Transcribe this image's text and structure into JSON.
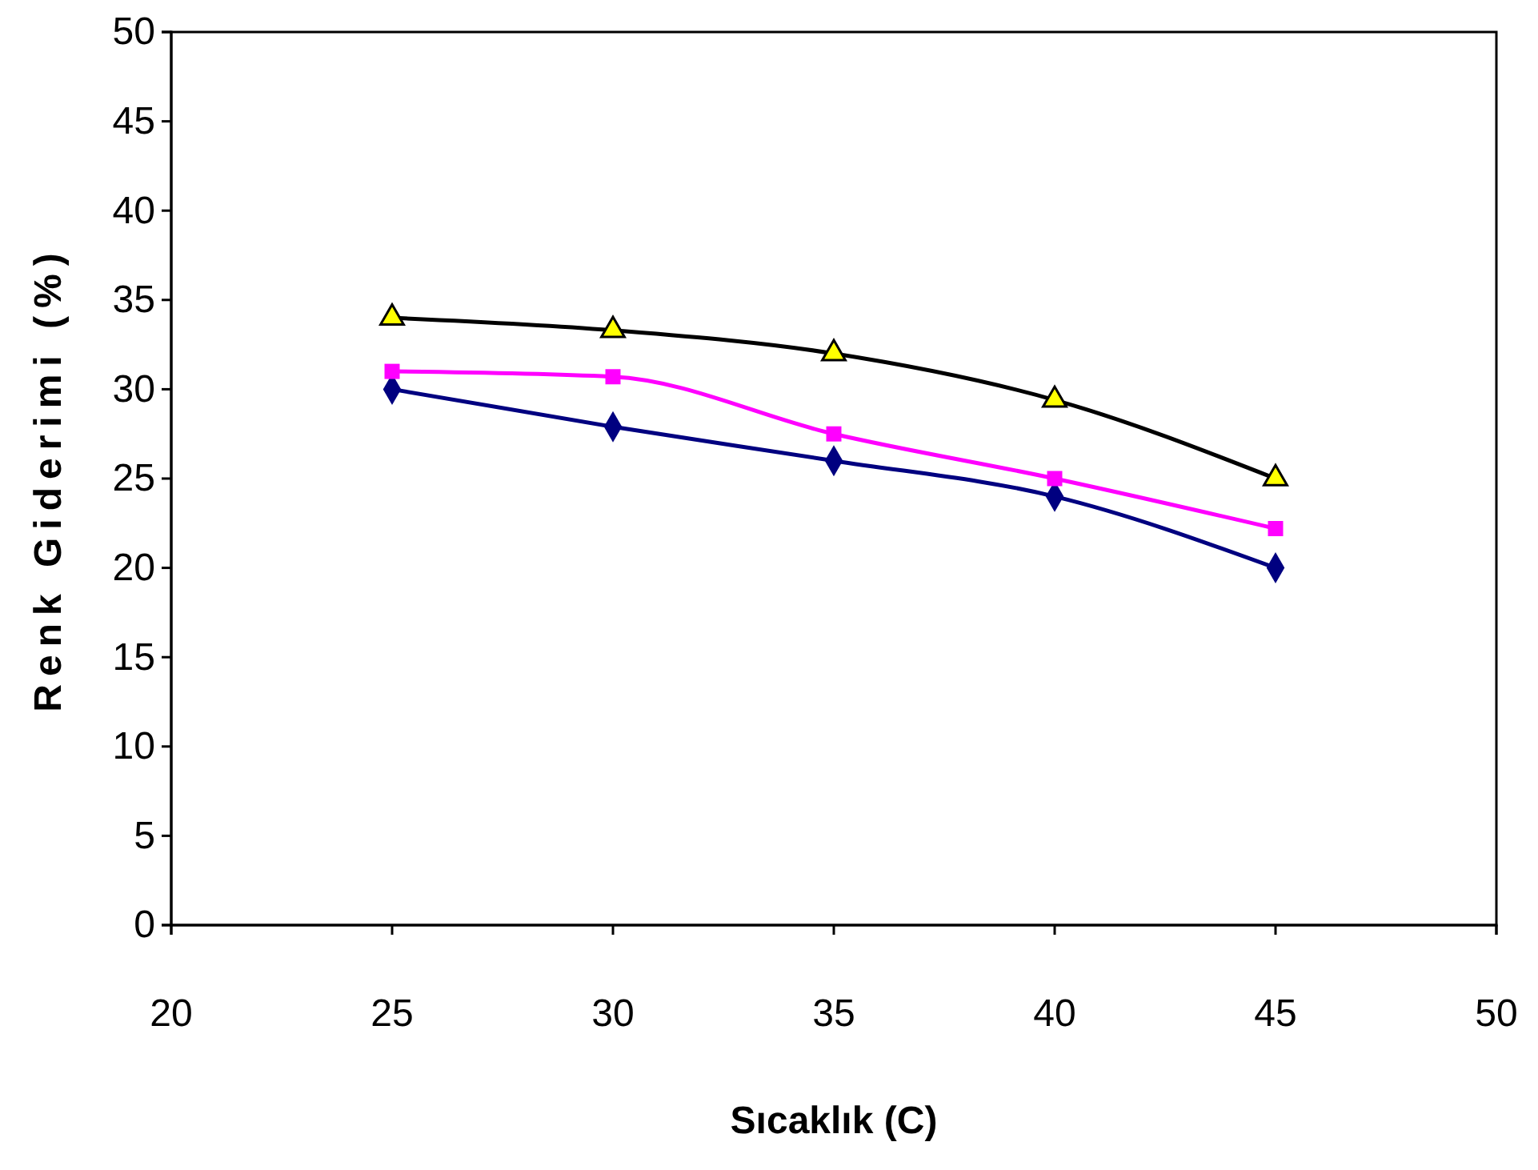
{
  "chart_data": {
    "type": "line",
    "xlabel": "Sıcaklık (C)",
    "ylabel": "Renk Giderimi (%)",
    "x": [
      25,
      30,
      35,
      40,
      45
    ],
    "series": [
      {
        "color": "#000080",
        "marker": "diamond",
        "values": [
          30,
          27.9,
          26,
          24,
          20
        ]
      },
      {
        "color": "#ff00ff",
        "marker": "square",
        "values": [
          31,
          30.7,
          27.5,
          25,
          22.2
        ]
      },
      {
        "color": "#000000",
        "marker": "triangle",
        "values": [
          34,
          33.3,
          32,
          29.4,
          25
        ]
      }
    ],
    "xlim": [
      20,
      50
    ],
    "xticks": [
      20,
      25,
      30,
      35,
      40,
      45,
      50
    ],
    "ylim": [
      0,
      50
    ],
    "yticks": [
      0,
      5,
      10,
      15,
      20,
      25,
      30,
      35,
      40,
      45,
      50
    ],
    "grid": false,
    "line_style": "solid"
  }
}
